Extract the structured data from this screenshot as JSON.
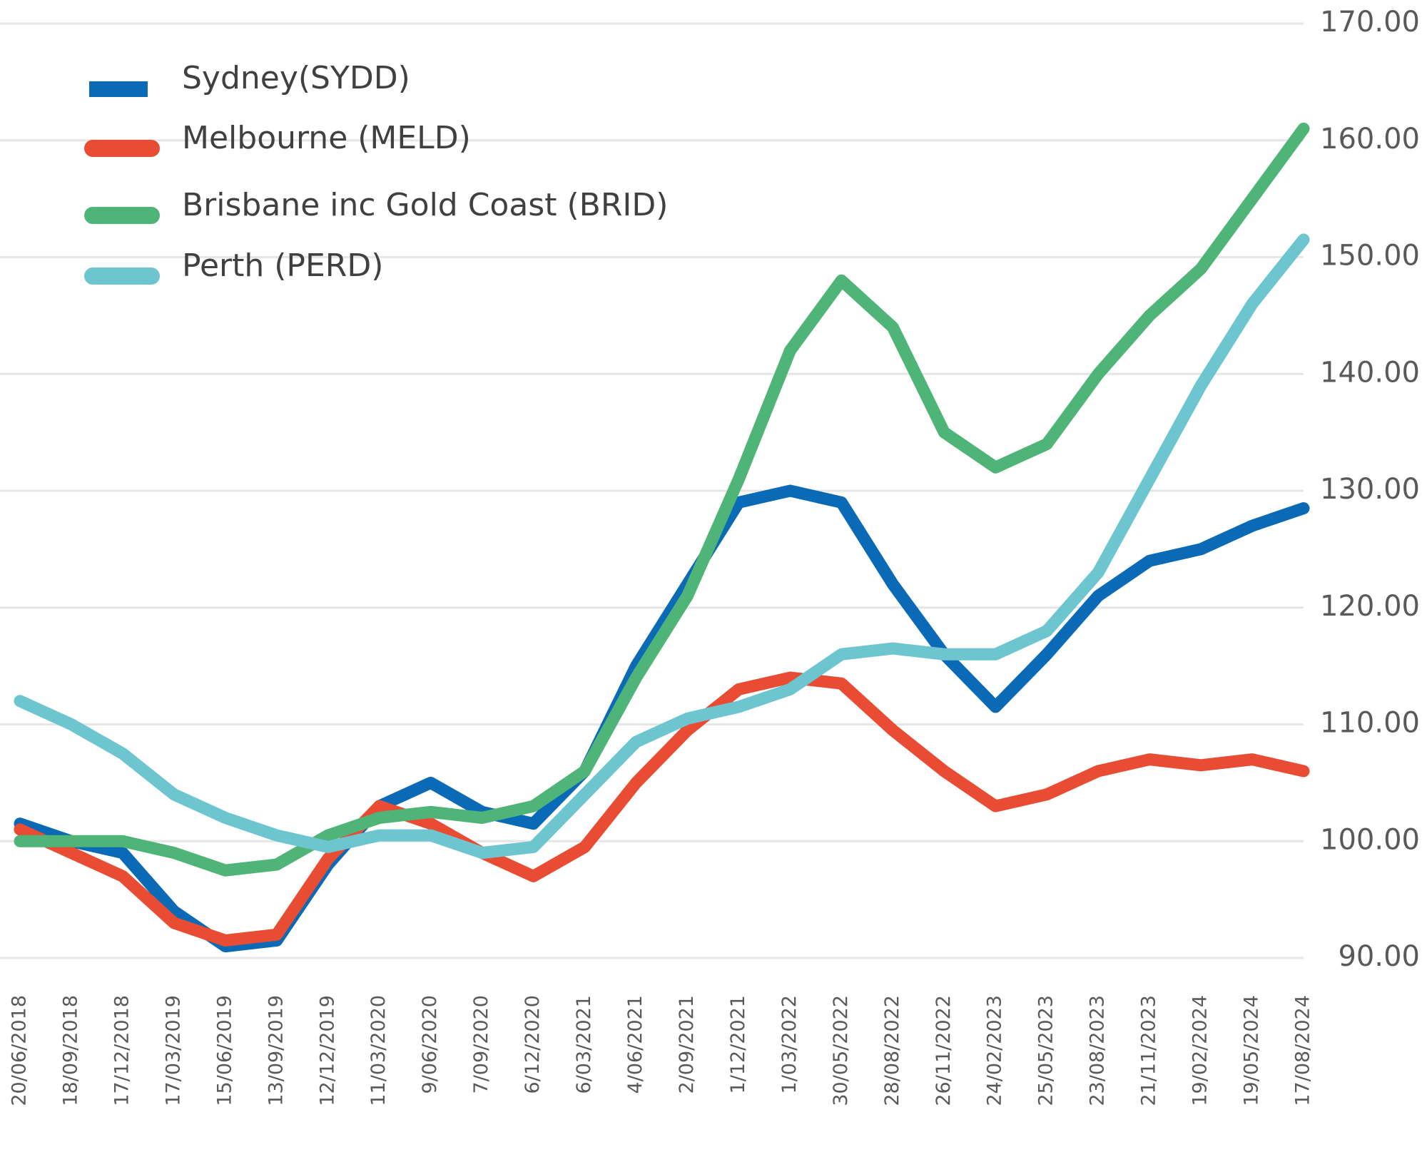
{
  "chart_data": {
    "type": "line",
    "categories": [
      "20/06/2018",
      "18/09/2018",
      "17/12/2018",
      "17/03/2019",
      "15/06/2019",
      "13/09/2019",
      "12/12/2019",
      "11/03/2020",
      "9/06/2020",
      "7/09/2020",
      "6/12/2020",
      "6/03/2021",
      "4/06/2021",
      "2/09/2021",
      "1/12/2021",
      "1/03/2022",
      "30/05/2022",
      "28/08/2022",
      "26/11/2022",
      "24/02/2023",
      "25/05/2023",
      "23/08/2023",
      "21/11/2023",
      "19/02/2024",
      "19/05/2024",
      "17/08/2024"
    ],
    "series": [
      {
        "name": "Sydney(SYDD)",
        "color": "#0a6ab6",
        "values": [
          101.5,
          100,
          99,
          94,
          91,
          91.5,
          98,
          103,
          105,
          102.5,
          101.5,
          106,
          115,
          122,
          129,
          130,
          129,
          122,
          116,
          111.5,
          116,
          121,
          124,
          125,
          127,
          128.5
        ]
      },
      {
        "name": "Melbourne (MELD)",
        "color": "#e84c33",
        "values": [
          101,
          99,
          97,
          93,
          91.5,
          92,
          98.5,
          103,
          101.5,
          99,
          97,
          99.5,
          105,
          109.5,
          113,
          114,
          113.5,
          109.5,
          106,
          103,
          104,
          106,
          107,
          106.5,
          107,
          106
        ]
      },
      {
        "name": "Brisbane inc Gold Coast (BRID)",
        "color": "#4fb477",
        "values": [
          100,
          100,
          100,
          99,
          97.5,
          98,
          100.5,
          102,
          102.5,
          102,
          103,
          106,
          114,
          121,
          131,
          142,
          148,
          144,
          135,
          132,
          134,
          140,
          145,
          149,
          155,
          161
        ]
      },
      {
        "name": "Perth (PERD)",
        "color": "#6cc5cf",
        "values": [
          112,
          110,
          107.5,
          104,
          102,
          100.5,
          99.5,
          100.5,
          100.5,
          99,
          99.5,
          104,
          108.5,
          110.5,
          111.5,
          113,
          116,
          116.5,
          116,
          116,
          118,
          123,
          131,
          139,
          146,
          151.5
        ]
      }
    ],
    "ylim": [
      90,
      170
    ],
    "yticks": [
      {
        "value": 90,
        "label": "90.00"
      },
      {
        "value": 100,
        "label": "100.00"
      },
      {
        "value": 110,
        "label": "110.00"
      },
      {
        "value": 120,
        "label": "120.00"
      },
      {
        "value": 130,
        "label": "130.00"
      },
      {
        "value": 140,
        "label": "140.00"
      },
      {
        "value": 150,
        "label": "150.00"
      },
      {
        "value": 160,
        "label": "160.00"
      },
      {
        "value": 170,
        "label": "170.00"
      }
    ],
    "grid": true
  }
}
